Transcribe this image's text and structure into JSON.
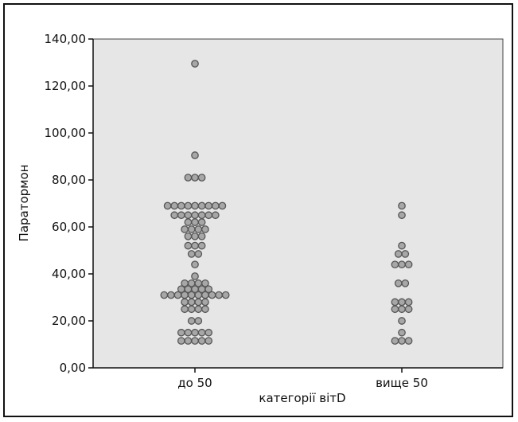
{
  "chart_data": {
    "type": "scatter",
    "subtype": "dot-strip",
    "xlabel": "категорії вітD",
    "ylabel": "Паратормон",
    "categories": [
      "до 50",
      "вище 50"
    ],
    "y_ticks": [
      "0,00",
      "20,00",
      "40,00",
      "60,00",
      "80,00",
      "100,00",
      "120,00",
      "140,00"
    ],
    "ylim": [
      0,
      140
    ],
    "grid": false,
    "legend": "none",
    "colors": {
      "plot_background": "#e6e6e6",
      "marker_fill": "#a7a7a7",
      "marker_stroke": "#555555"
    },
    "series": [
      {
        "category": "до 50",
        "values": [
          11.5,
          11.5,
          11.5,
          11.5,
          11.5,
          15,
          15,
          15,
          15,
          15,
          20,
          20,
          25,
          25,
          25,
          25,
          28,
          28,
          28,
          28,
          31,
          31,
          31,
          31,
          31,
          31,
          31,
          31,
          31,
          31,
          33.5,
          33.5,
          33.5,
          33.5,
          33.5,
          36,
          36,
          36,
          36,
          39,
          44,
          48.5,
          48.5,
          52,
          52,
          52,
          56,
          56,
          56,
          59,
          59,
          59,
          59,
          62,
          62,
          62,
          65,
          65,
          65,
          65,
          65,
          65,
          65,
          69,
          69,
          69,
          69,
          69,
          69,
          69,
          69,
          69,
          81,
          81,
          81,
          90.5,
          129.5
        ]
      },
      {
        "category": "вище 50",
        "values": [
          11.5,
          11.5,
          11.5,
          15,
          20,
          25,
          25,
          25,
          28,
          28,
          28,
          36,
          36,
          44,
          44,
          44,
          48.5,
          48.5,
          52,
          65,
          69
        ]
      }
    ]
  }
}
